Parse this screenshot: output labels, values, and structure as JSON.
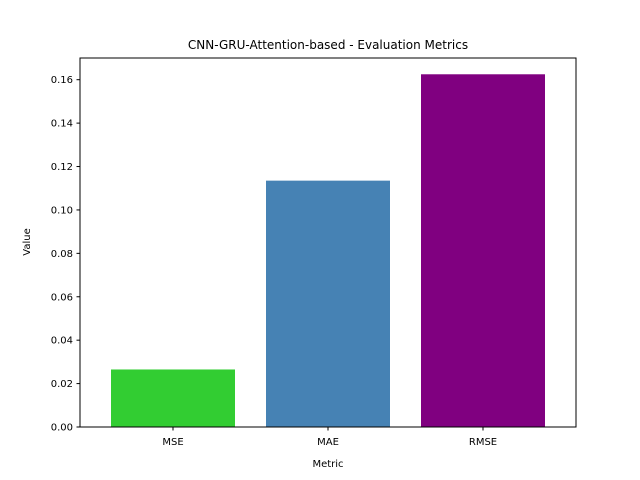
{
  "chart_data": {
    "type": "bar",
    "title": "CNN-GRU-Attention-based - Evaluation Metrics",
    "xlabel": "Metric",
    "ylabel": "Value",
    "categories": [
      "MSE",
      "MAE",
      "RMSE"
    ],
    "values": [
      0.0265,
      0.1135,
      0.1625
    ],
    "colors": [
      "#32cd32",
      "#4682b4",
      "#800080"
    ],
    "ylim": [
      0,
      0.17
    ],
    "yticks": [
      0.0,
      0.02,
      0.04,
      0.06,
      0.08,
      0.1,
      0.12,
      0.14,
      0.16
    ],
    "ytick_labels": [
      "0.00",
      "0.02",
      "0.04",
      "0.06",
      "0.08",
      "0.10",
      "0.12",
      "0.14",
      "0.16"
    ],
    "grid": false,
    "legend": "none"
  }
}
